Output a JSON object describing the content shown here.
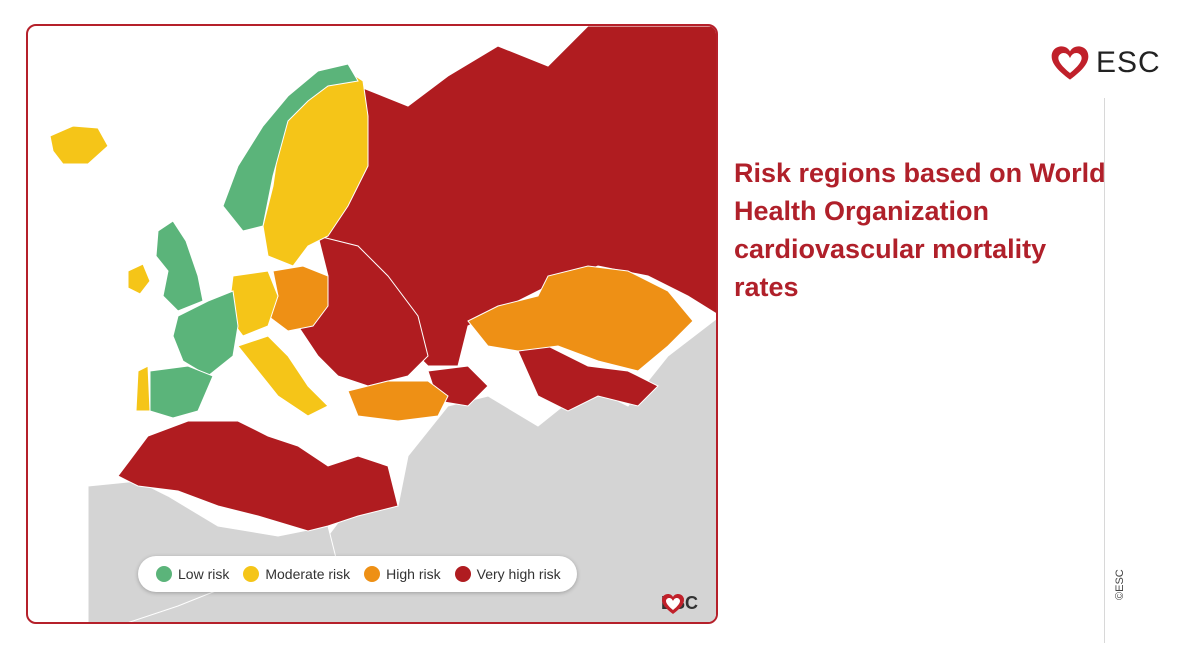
{
  "header": {
    "logo_text": "ESC",
    "title": "Risk regions based on World Health Organization cardiovascular mortality rates"
  },
  "map": {
    "legend": [
      {
        "label": "Low risk",
        "color": "#5bb47a"
      },
      {
        "label": "Moderate risk",
        "color": "#f5c518"
      },
      {
        "label": "High risk",
        "color": "#ee9015"
      },
      {
        "label": "Very high risk",
        "color": "#b01c20"
      }
    ],
    "no_data_color": "#d4d4d4",
    "logo_text": "ESC"
  },
  "footer": {
    "copyright": "©ESC"
  }
}
